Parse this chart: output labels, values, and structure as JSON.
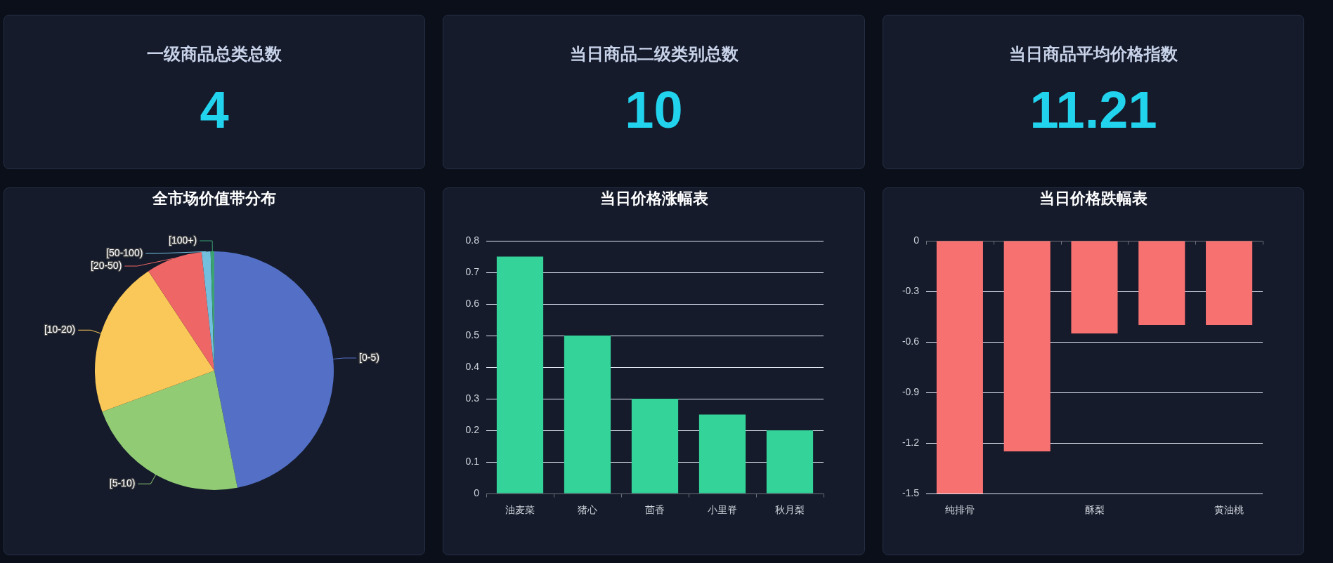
{
  "chart_data": [
    {
      "type": "other",
      "title": "一级商品总类总数",
      "annotations": [
        "4"
      ]
    },
    {
      "type": "other",
      "title": "当日商品二级类别总数",
      "annotations": [
        "10"
      ]
    },
    {
      "type": "other",
      "title": "当日商品平均价格指数",
      "annotations": [
        "11.21"
      ]
    },
    {
      "type": "pie",
      "title": "全市场价值带分布",
      "categories": [
        "[0-5)",
        "[5-10)",
        "[10-20)",
        "[20-50)",
        "[50-100)",
        "[100+)"
      ],
      "values": [
        46.9,
        22.5,
        21.3,
        7.6,
        1.2,
        0.5
      ],
      "colors": [
        "#5470c6",
        "#91cc75",
        "#fac858",
        "#ee6666",
        "#73c0de",
        "#3ba272"
      ]
    },
    {
      "type": "bar",
      "title": "当日价格涨幅表",
      "categories": [
        "油麦菜",
        "猪心",
        "茴香",
        "小里脊",
        "秋月梨"
      ],
      "values": [
        0.75,
        0.5,
        0.3,
        0.25,
        0.2
      ],
      "color": "#34d399",
      "ylim": [
        0,
        0.8
      ],
      "yticks": [
        0,
        0.1,
        0.2,
        0.3,
        0.4,
        0.5,
        0.6,
        0.7,
        0.8
      ],
      "grid": "y"
    },
    {
      "type": "bar",
      "title": "当日价格跌幅表",
      "categories": [
        "纯排骨",
        null,
        "酥梨",
        null,
        "黄油桃"
      ],
      "values": [
        -1.5,
        -1.25,
        -0.55,
        -0.5,
        -0.5
      ],
      "color": "#f87171",
      "ylim": [
        -1.5,
        0
      ],
      "yticks": [
        -1.5,
        -1.2,
        -0.9,
        -0.6,
        -0.3,
        0
      ],
      "grid": "y"
    }
  ]
}
